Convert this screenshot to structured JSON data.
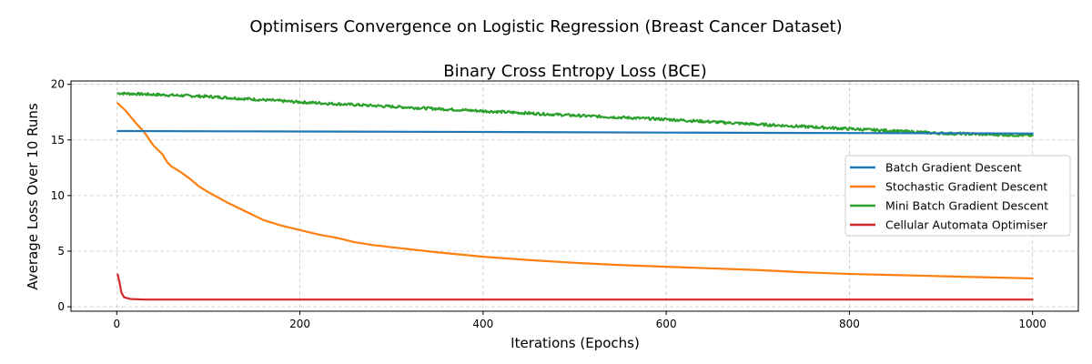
{
  "figure": {
    "suptitle": "Optimisers Convergence on Logistic Regression (Breast Cancer Dataset)"
  },
  "chart_data": {
    "type": "line",
    "title": "Binary Cross Entropy Loss (BCE)",
    "xlabel": "Iterations (Epochs)",
    "ylabel": "Average Loss Over 10 Runs",
    "xlim": [
      -50,
      1050
    ],
    "ylim": [
      -0.4,
      20.3
    ],
    "xticks": [
      0,
      200,
      400,
      600,
      800,
      1000
    ],
    "yticks": [
      0,
      5,
      10,
      15,
      20
    ],
    "grid": true,
    "legend_position": "center-right",
    "series": [
      {
        "name": "Batch Gradient Descent",
        "color": "#1f77b4",
        "noise": 0,
        "points": [
          [
            1,
            15.8
          ],
          [
            200,
            15.76
          ],
          [
            400,
            15.72
          ],
          [
            600,
            15.66
          ],
          [
            800,
            15.62
          ],
          [
            1000,
            15.58
          ]
        ]
      },
      {
        "name": "Stochastic Gradient Descent",
        "color": "#ff7f0e",
        "noise": 0,
        "points": [
          [
            1,
            18.3
          ],
          [
            10,
            17.6
          ],
          [
            20,
            16.6
          ],
          [
            30,
            15.7
          ],
          [
            40,
            14.5
          ],
          [
            50,
            13.7
          ],
          [
            55,
            13.0
          ],
          [
            60,
            12.6
          ],
          [
            70,
            12.1
          ],
          [
            80,
            11.5
          ],
          [
            90,
            10.8
          ],
          [
            100,
            10.3
          ],
          [
            120,
            9.4
          ],
          [
            140,
            8.6
          ],
          [
            160,
            7.8
          ],
          [
            180,
            7.3
          ],
          [
            200,
            6.9
          ],
          [
            220,
            6.5
          ],
          [
            240,
            6.2
          ],
          [
            260,
            5.8
          ],
          [
            280,
            5.55
          ],
          [
            300,
            5.35
          ],
          [
            350,
            4.9
          ],
          [
            400,
            4.5
          ],
          [
            450,
            4.2
          ],
          [
            500,
            3.95
          ],
          [
            550,
            3.75
          ],
          [
            600,
            3.6
          ],
          [
            650,
            3.45
          ],
          [
            700,
            3.3
          ],
          [
            750,
            3.1
          ],
          [
            800,
            2.95
          ],
          [
            850,
            2.85
          ],
          [
            900,
            2.75
          ],
          [
            950,
            2.65
          ],
          [
            1000,
            2.55
          ]
        ]
      },
      {
        "name": "Mini Batch Gradient Descent",
        "color": "#2ca02c",
        "noise": 0.12,
        "points": [
          [
            1,
            19.2
          ],
          [
            100,
            18.9
          ],
          [
            200,
            18.4
          ],
          [
            300,
            18.0
          ],
          [
            400,
            17.6
          ],
          [
            500,
            17.2
          ],
          [
            600,
            16.85
          ],
          [
            700,
            16.4
          ],
          [
            800,
            16.0
          ],
          [
            900,
            15.6
          ],
          [
            1000,
            15.4
          ]
        ]
      },
      {
        "name": "Cellular Automata Optimiser",
        "color": "#d62728",
        "noise": 0,
        "points": [
          [
            1,
            2.9
          ],
          [
            3,
            2.2
          ],
          [
            5,
            1.3
          ],
          [
            8,
            0.85
          ],
          [
            15,
            0.7
          ],
          [
            30,
            0.65
          ],
          [
            1000,
            0.65
          ]
        ]
      }
    ]
  }
}
